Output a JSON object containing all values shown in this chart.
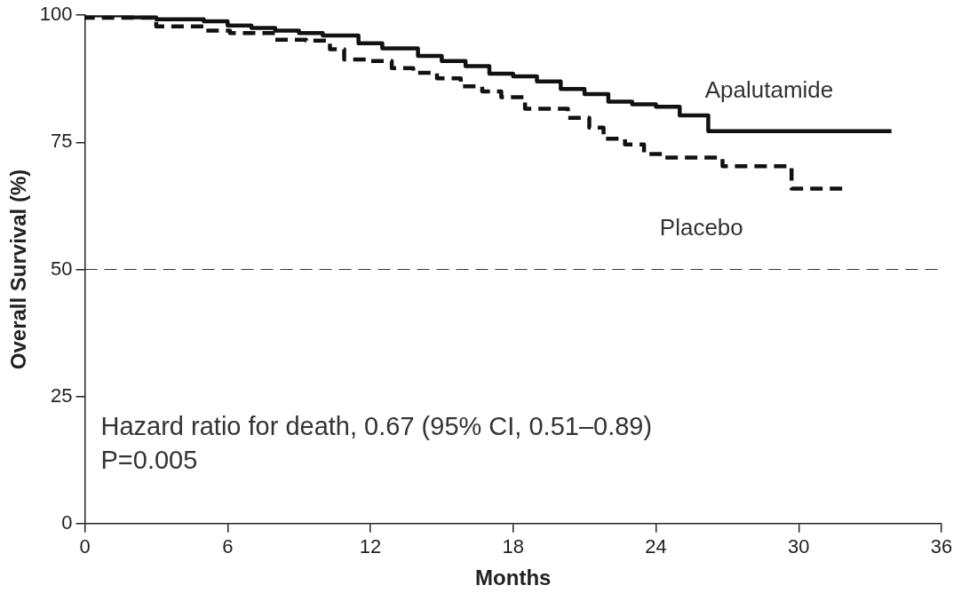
{
  "chart_data": {
    "type": "step",
    "xlabel": "Months",
    "ylabel": "Overall Survival (%)",
    "xlim": [
      0,
      36
    ],
    "xticks": [
      0,
      6,
      12,
      18,
      24,
      30,
      36
    ],
    "ylim": [
      0,
      100
    ],
    "yticks": [
      0,
      25,
      50,
      75,
      100
    ],
    "grid": false,
    "legend": false,
    "ref_lines": [
      {
        "axis": "y",
        "value": 50,
        "line_style": "dashed",
        "color": "#333333"
      }
    ],
    "annotations": [
      "Hazard ratio for death, 0.67 (95% CI, 0.51–0.89)",
      "P=0.005"
    ],
    "series": [
      {
        "name": "Apalutamide",
        "color": "#111111",
        "line_style": "solid",
        "x": [
          0,
          2,
          3,
          5,
          6,
          7,
          8,
          9,
          10,
          11.5,
          12.5,
          14,
          15,
          16,
          17,
          18,
          19,
          20,
          21,
          22,
          23,
          24,
          25,
          26.2,
          28.5,
          33.9
        ],
        "values": [
          100,
          100,
          99.6,
          99.2,
          98.8,
          98,
          97.5,
          97,
          96.5,
          96,
          94.5,
          93.5,
          92,
          91,
          90,
          88.5,
          88,
          87,
          85.5,
          84.5,
          83,
          82.5,
          82,
          80.3,
          77.2,
          77.2
        ]
      },
      {
        "name": "Placebo",
        "color": "#111111",
        "line_style": "dashed",
        "x": [
          0,
          3,
          5.1,
          6.1,
          8,
          9.3,
          10.3,
          10.9,
          11.9,
          12.9,
          13.8,
          14.8,
          15.8,
          16.7,
          17.5,
          18.5,
          20.3,
          21.2,
          21.8,
          22.7,
          23.5,
          24.3,
          26.8,
          29.7,
          32
        ],
        "values": [
          100,
          99.5,
          97.8,
          97,
          96.5,
          95.2,
          95,
          93.3,
          91.3,
          91,
          89.6,
          88.7,
          87.6,
          86,
          85,
          83.9,
          81.6,
          79.8,
          77.9,
          75.7,
          74.6,
          72.7,
          72,
          70.3,
          65.9
        ]
      }
    ]
  }
}
